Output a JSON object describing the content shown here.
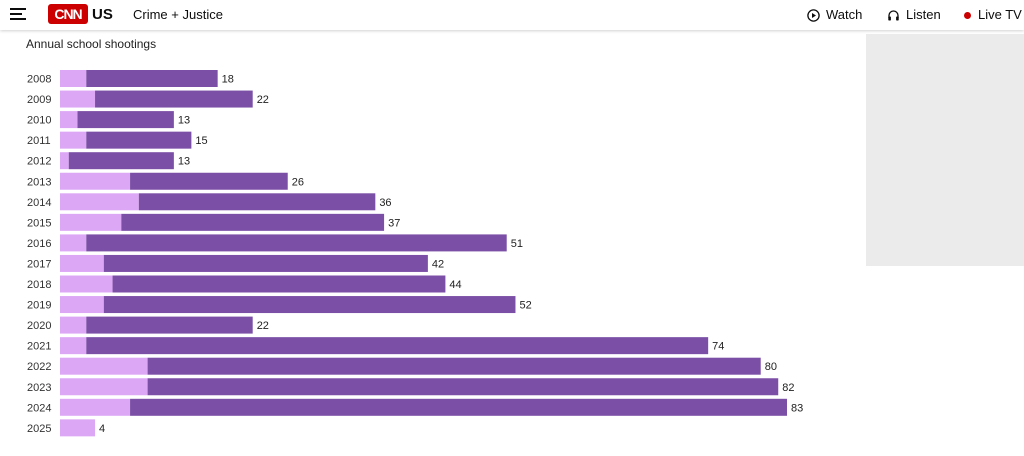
{
  "header": {
    "logo_text": "CNN",
    "edition": "US",
    "section": "Crime + Justice",
    "watch_label": "Watch",
    "listen_label": "Listen",
    "live_label": "Live TV",
    "icons": [
      "menu-icon",
      "play-circle-icon",
      "headphones-icon",
      "live-dot-icon"
    ]
  },
  "colors": {
    "brand": "#cc0000",
    "bar_dark": "#7b4fa6",
    "bar_light": "#dca8f5",
    "live_dot": "#cc0000"
  },
  "chart_data": {
    "type": "bar",
    "orientation": "horizontal",
    "stacked": true,
    "title": "Annual school shootings",
    "categories": [
      "2008",
      "2009",
      "2010",
      "2011",
      "2012",
      "2013",
      "2014",
      "2015",
      "2016",
      "2017",
      "2018",
      "2019",
      "2020",
      "2021",
      "2022",
      "2023",
      "2024",
      "2025"
    ],
    "series": [
      {
        "values": [
          3,
          4,
          2,
          3,
          1,
          8,
          9,
          7,
          3,
          5,
          6,
          5,
          3,
          3,
          10,
          10,
          8,
          4
        ]
      },
      {
        "values": [
          15,
          18,
          11,
          12,
          12,
          18,
          27,
          30,
          48,
          37,
          38,
          47,
          19,
          71,
          70,
          72,
          75,
          0
        ]
      }
    ],
    "totals": [
      18,
      22,
      13,
      15,
      13,
      26,
      36,
      37,
      51,
      42,
      44,
      52,
      22,
      74,
      80,
      82,
      83,
      4
    ],
    "xlim": [
      0,
      83
    ],
    "grid": false,
    "legend": "none"
  }
}
